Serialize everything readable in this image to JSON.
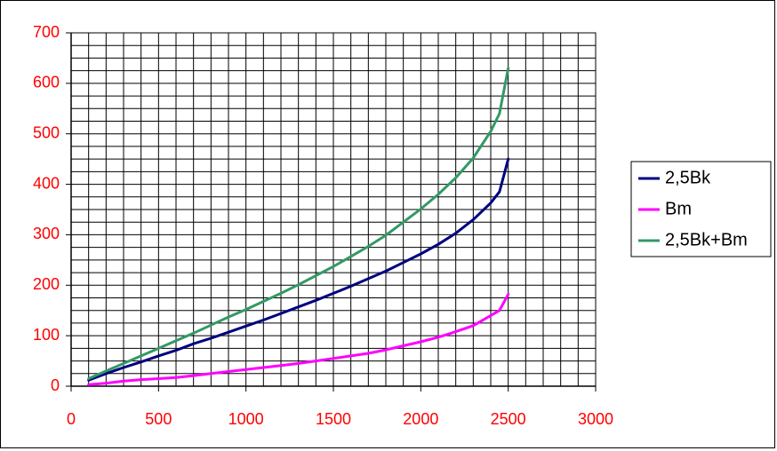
{
  "chart_data": {
    "type": "line",
    "title": "",
    "xlabel": "",
    "ylabel": "",
    "xlim": [
      0,
      3000
    ],
    "ylim": [
      0,
      700
    ],
    "x_ticks": [
      0,
      500,
      1000,
      1500,
      2000,
      2500,
      3000
    ],
    "y_ticks": [
      0,
      100,
      200,
      300,
      400,
      500,
      600,
      700
    ],
    "x_minor_step": 100,
    "y_minor_step": 25,
    "grid": true,
    "legend_position": "right",
    "series": [
      {
        "name": "2,5Bk",
        "color": "#000080",
        "points": [
          [
            100,
            12
          ],
          [
            200,
            25
          ],
          [
            300,
            37
          ],
          [
            400,
            48
          ],
          [
            500,
            60
          ],
          [
            600,
            71
          ],
          [
            700,
            84
          ],
          [
            800,
            95
          ],
          [
            900,
            107
          ],
          [
            1000,
            119
          ],
          [
            1100,
            131
          ],
          [
            1200,
            144
          ],
          [
            1300,
            157
          ],
          [
            1400,
            170
          ],
          [
            1500,
            184
          ],
          [
            1600,
            198
          ],
          [
            1700,
            213
          ],
          [
            1800,
            228
          ],
          [
            1900,
            245
          ],
          [
            2000,
            262
          ],
          [
            2100,
            281
          ],
          [
            2200,
            303
          ],
          [
            2300,
            330
          ],
          [
            2400,
            363
          ],
          [
            2450,
            385
          ],
          [
            2500,
            450
          ]
        ]
      },
      {
        "name": "Bm",
        "color": "#ff00ff",
        "points": [
          [
            100,
            3
          ],
          [
            200,
            6
          ],
          [
            300,
            10
          ],
          [
            400,
            13
          ],
          [
            500,
            15
          ],
          [
            600,
            17
          ],
          [
            700,
            21
          ],
          [
            800,
            25
          ],
          [
            900,
            29
          ],
          [
            1000,
            33
          ],
          [
            1100,
            37
          ],
          [
            1200,
            41
          ],
          [
            1300,
            45
          ],
          [
            1400,
            50
          ],
          [
            1500,
            55
          ],
          [
            1600,
            60
          ],
          [
            1700,
            65
          ],
          [
            1800,
            72
          ],
          [
            1900,
            80
          ],
          [
            2000,
            88
          ],
          [
            2100,
            97
          ],
          [
            2200,
            108
          ],
          [
            2300,
            120
          ],
          [
            2400,
            140
          ],
          [
            2450,
            150
          ],
          [
            2500,
            182
          ]
        ]
      },
      {
        "name": "2,5Bk+Bm",
        "color": "#339966",
        "points": [
          [
            100,
            15
          ],
          [
            200,
            30
          ],
          [
            300,
            45
          ],
          [
            400,
            60
          ],
          [
            500,
            75
          ],
          [
            600,
            90
          ],
          [
            700,
            105
          ],
          [
            800,
            121
          ],
          [
            900,
            137
          ],
          [
            1000,
            152
          ],
          [
            1100,
            168
          ],
          [
            1200,
            184
          ],
          [
            1300,
            201
          ],
          [
            1400,
            219
          ],
          [
            1500,
            237
          ],
          [
            1600,
            257
          ],
          [
            1700,
            277
          ],
          [
            1800,
            299
          ],
          [
            1900,
            325
          ],
          [
            2000,
            351
          ],
          [
            2100,
            380
          ],
          [
            2200,
            413
          ],
          [
            2300,
            452
          ],
          [
            2400,
            505
          ],
          [
            2450,
            540
          ],
          [
            2500,
            630
          ]
        ]
      }
    ]
  }
}
